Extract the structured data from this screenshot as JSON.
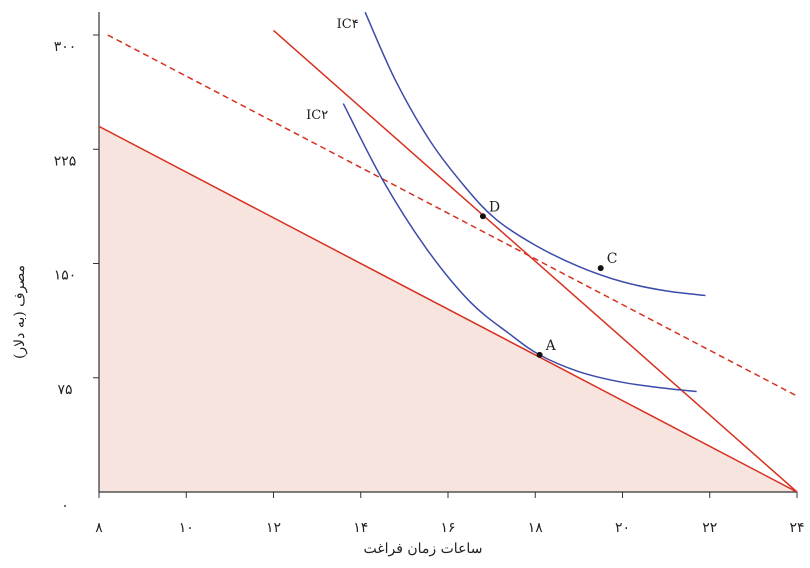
{
  "chart_data": {
    "type": "line",
    "title": "",
    "xlabel": "ساعات زمان فراغت",
    "ylabel": "مصرف (به دلار)",
    "xlim": [
      8,
      24
    ],
    "ylim": [
      0,
      300
    ],
    "x_ticks": [
      8,
      10,
      12,
      14,
      16,
      18,
      20,
      22,
      24
    ],
    "x_tick_labels": [
      "۸",
      "۱۰",
      "۱۲",
      "۱۴",
      "۱۶",
      "۱۸",
      "۲۰",
      "۲۲",
      "۲۴"
    ],
    "y_ticks": [
      0,
      75,
      150,
      225,
      300
    ],
    "y_tick_labels": [
      "۰",
      "۷۵",
      "۱۵۰",
      "۲۲۵",
      "۳۰۰"
    ],
    "grid": false,
    "colors": {
      "line": "#d7301f",
      "curve": "#3b4ba8",
      "fill": "#f7e4df",
      "axis": "#333333",
      "point": "#111111"
    },
    "shaded_region": {
      "vertices": [
        [
          8,
          240
        ],
        [
          24,
          0
        ],
        [
          8,
          0
        ]
      ]
    },
    "series": [
      {
        "style": "solid",
        "color": "#d7301f",
        "points": [
          [
            8,
            240
          ],
          [
            24,
            0
          ]
        ]
      },
      {
        "style": "solid",
        "color": "#d7301f",
        "points": [
          [
            12,
            303
          ],
          [
            24,
            0
          ]
        ]
      },
      {
        "style": "dashed",
        "color": "#d7301f",
        "points": [
          [
            8.2,
            300
          ],
          [
            24,
            63
          ]
        ]
      },
      {
        "style": "solid",
        "color": "#3b4ba8",
        "label": "IC۲",
        "points": [
          [
            13.6,
            255
          ],
          [
            14.5,
            205
          ],
          [
            15.5,
            160
          ],
          [
            16.5,
            125
          ],
          [
            17.4,
            104
          ],
          [
            18.1,
            90
          ],
          [
            19.0,
            79
          ],
          [
            20.0,
            72
          ],
          [
            21.0,
            68
          ],
          [
            21.7,
            66
          ]
        ]
      },
      {
        "style": "solid",
        "color": "#3b4ba8",
        "label": "IC۴",
        "points": [
          [
            14.1,
            315
          ],
          [
            14.8,
            270
          ],
          [
            15.6,
            230
          ],
          [
            16.4,
            200
          ],
          [
            17.1,
            179
          ],
          [
            18.0,
            162
          ],
          [
            19.0,
            148
          ],
          [
            20.0,
            138
          ],
          [
            21.0,
            132
          ],
          [
            21.9,
            129
          ]
        ]
      }
    ],
    "curve_labels": [
      {
        "text": "IC۴",
        "at": [
          14.0,
          308
        ]
      },
      {
        "text": "IC۲",
        "at": [
          13.3,
          248
        ]
      }
    ],
    "points": [
      {
        "label": "A",
        "x": 18.1,
        "y": 90
      },
      {
        "label": "C",
        "x": 19.5,
        "y": 147
      },
      {
        "label": "D",
        "x": 16.8,
        "y": 181
      }
    ]
  }
}
